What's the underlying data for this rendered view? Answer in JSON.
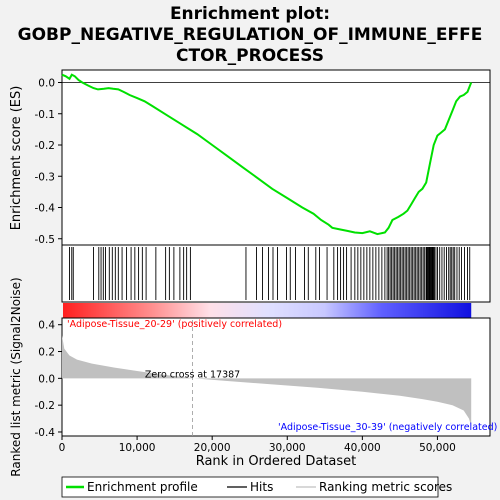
{
  "chart_data": {
    "type": "line",
    "title_lines": [
      "Enrichment plot:",
      "GOBP_NEGATIVE_REGULATION_OF_IMMUNE_EFFE",
      "CTOR_PROCESS"
    ],
    "es_panel": {
      "ylabel": "Enrichment score (ES)",
      "ylim": [
        -0.52,
        0.04
      ],
      "yticks": [
        "0.0",
        "-0.1",
        "-0.2",
        "-0.3",
        "-0.4",
        "-0.5"
      ],
      "ytick_values": [
        0.0,
        -0.1,
        -0.2,
        -0.3,
        -0.4,
        -0.5
      ],
      "series": [
        {
          "name": "Enrichment profile",
          "color": "#00e000",
          "x": [
            0,
            500,
            1000,
            1300,
            1700,
            2200,
            2700,
            3500,
            4200,
            4800,
            5600,
            6200,
            6800,
            7500,
            8200,
            9000,
            10000,
            11000,
            12000,
            14000,
            16000,
            18000,
            20000,
            22000,
            24000,
            26000,
            28000,
            30000,
            32000,
            33500,
            34500,
            35500,
            36000,
            37000,
            38000,
            39000,
            40000,
            41000,
            42000,
            43000,
            43500,
            44000,
            44800,
            45500,
            46000,
            46500,
            47000,
            47500,
            48000,
            48500,
            49000,
            49500,
            50000,
            50500,
            51000,
            51500,
            52000,
            52500,
            53000,
            53500,
            54000,
            54500
          ],
          "y": [
            0.025,
            0.02,
            0.012,
            0.025,
            0.02,
            0.008,
            0.0,
            -0.01,
            -0.018,
            -0.022,
            -0.02,
            -0.018,
            -0.02,
            -0.022,
            -0.03,
            -0.04,
            -0.05,
            -0.06,
            -0.075,
            -0.105,
            -0.135,
            -0.165,
            -0.2,
            -0.235,
            -0.27,
            -0.305,
            -0.34,
            -0.37,
            -0.4,
            -0.42,
            -0.44,
            -0.455,
            -0.465,
            -0.47,
            -0.475,
            -0.48,
            -0.482,
            -0.476,
            -0.485,
            -0.48,
            -0.465,
            -0.44,
            -0.43,
            -0.42,
            -0.41,
            -0.39,
            -0.37,
            -0.35,
            -0.34,
            -0.32,
            -0.26,
            -0.2,
            -0.17,
            -0.16,
            -0.15,
            -0.12,
            -0.09,
            -0.06,
            -0.045,
            -0.04,
            -0.03,
            0.0
          ]
        }
      ]
    },
    "hits": {
      "name": "Hits",
      "positions": [
        1000,
        1300,
        1500,
        4200,
        4900,
        5200,
        5500,
        5800,
        6300,
        6700,
        7100,
        7500,
        8000,
        8600,
        9200,
        9700,
        10200,
        10700,
        11200,
        12500,
        13800,
        14300,
        14900,
        15700,
        16200,
        16600,
        17100,
        24500,
        25900,
        26700,
        27500,
        28100,
        28700,
        29900,
        30400,
        31100,
        32300,
        32800,
        33800,
        34300,
        35300,
        36200,
        36700,
        37100,
        37500,
        37900,
        38500,
        39000,
        39400,
        39800,
        40200,
        40600,
        41000,
        41400,
        41800,
        42200,
        42600,
        43000,
        43300,
        43500,
        43700,
        43900,
        44100,
        44300,
        44500,
        44700,
        44900,
        45100,
        45300,
        45500,
        45700,
        45900,
        46100,
        46300,
        46500,
        46700,
        46900,
        47100,
        47300,
        47500,
        47700,
        47900,
        48100,
        48300,
        48500,
        48600,
        48700,
        48800,
        48900,
        49000,
        49100,
        49200,
        49300,
        49400,
        49500,
        49600,
        49800,
        50000,
        50300,
        50600,
        50900,
        51200,
        51500,
        51700,
        51900,
        52100,
        52300,
        52600,
        52900,
        53200,
        53600,
        54000,
        54300
      ]
    },
    "rank_panel": {
      "ylabel": "Ranked list metric (Signal2Noise)",
      "ylim": [
        -0.43,
        0.45
      ],
      "yticks": [
        "0.4",
        "0.2",
        "0.0",
        "-0.2",
        "-0.4"
      ],
      "ytick_values": [
        0.4,
        0.2,
        0.0,
        -0.2,
        -0.4
      ],
      "x": [
        0,
        300,
        1000,
        2000,
        4000,
        7000,
        10000,
        13000,
        17387,
        22000,
        28000,
        34000,
        40000,
        45000,
        48000,
        50000,
        52000,
        53500,
        54200,
        54500
      ],
      "y": [
        0.32,
        0.22,
        0.17,
        0.14,
        0.11,
        0.08,
        0.055,
        0.03,
        0.0,
        -0.02,
        -0.045,
        -0.07,
        -0.1,
        -0.13,
        -0.155,
        -0.175,
        -0.2,
        -0.24,
        -0.3,
        -0.36
      ],
      "fill_color": "#c0c0c0",
      "zero_cross_label": "Zero cross at 17387",
      "zero_cross": 17387,
      "pos_label": "'Adipose-Tissue_20-29' (positively correlated)",
      "neg_label": "'Adipose-Tissue_30-39' (negatively correlated)",
      "pos_color": "#ff0000",
      "neg_color": "#0000ff"
    },
    "xlabel": "Rank in Ordered Dataset",
    "xlim": [
      0,
      57000
    ],
    "xticks": [
      "0",
      "10,000",
      "20,000",
      "30,000",
      "40,000",
      "50,000"
    ],
    "xtick_values": [
      0,
      10000,
      20000,
      30000,
      40000,
      50000
    ],
    "legend": {
      "placement": "bottom",
      "items": [
        {
          "label": "Enrichment profile",
          "color": "#00e000",
          "kind": "line"
        },
        {
          "label": "Hits",
          "color": "#000000",
          "kind": "line"
        },
        {
          "label": "Ranking metric scores",
          "color": "#c0c0c0",
          "kind": "line"
        }
      ]
    }
  }
}
